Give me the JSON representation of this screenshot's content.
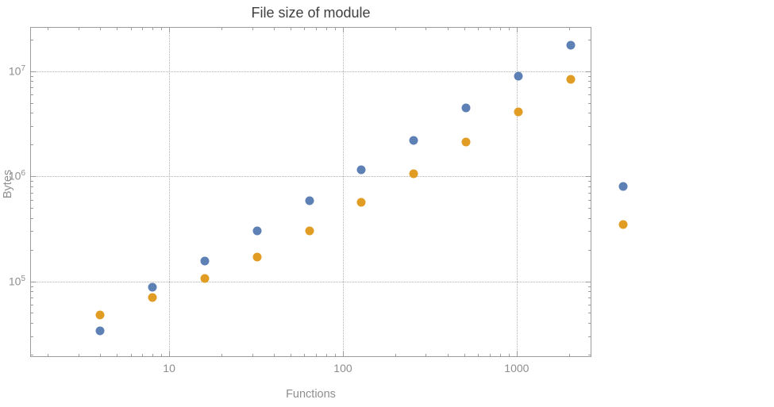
{
  "page": {
    "background": "#ffffff"
  },
  "chart_data": {
    "type": "scatter",
    "title": "File size of module",
    "xlabel": "Functions",
    "ylabel": "Bytes",
    "x_scale": "log",
    "y_scale": "log",
    "grid": "dotted gridlines at decade ticks",
    "legend_position": "right-outside-markers-only",
    "x_tick_values": [
      10,
      100,
      1000
    ],
    "y_tick_exponents": [
      5,
      6,
      7
    ],
    "x_range_log10": [
      0.2,
      3.43
    ],
    "y_range_log10": [
      4.28,
      7.42
    ],
    "series": [
      {
        "name": "series-1-blue",
        "color": "#5E81B5",
        "x": [
          4,
          8,
          16,
          32,
          64,
          128,
          256,
          512,
          1024,
          2048
        ],
        "y": [
          34000,
          88000,
          155000,
          300000,
          580000,
          1150000,
          2200000,
          4500000,
          8900000,
          17500000
        ]
      },
      {
        "name": "series-2-orange",
        "color": "#E19C24",
        "x": [
          4,
          8,
          16,
          32,
          64,
          128,
          256,
          512,
          1024,
          2048
        ],
        "y": [
          48000,
          70000,
          107000,
          170000,
          300000,
          560000,
          1050000,
          2100000,
          4100000,
          8300000
        ]
      }
    ],
    "outside_points": [
      {
        "x": 4096,
        "y": 800000,
        "series": 0
      },
      {
        "x": 4096,
        "y": 350000,
        "series": 1
      }
    ]
  }
}
